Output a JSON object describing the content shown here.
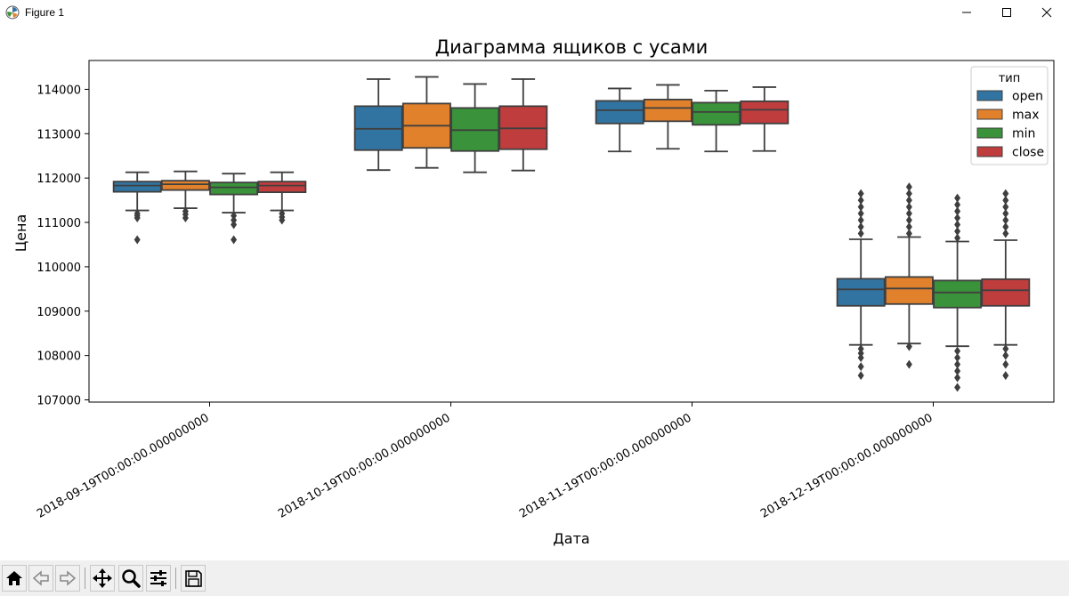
{
  "window": {
    "title": "Figure 1",
    "controls": [
      "minimize-icon",
      "maximize-icon",
      "close-icon"
    ]
  },
  "toolbar": {
    "buttons": [
      "home-icon",
      "back-icon",
      "forward-icon",
      "pan-icon",
      "zoom-icon",
      "configure-subplots-icon",
      "save-icon"
    ]
  },
  "chart_data": {
    "type": "box",
    "title": "Диаграмма ящиков с усами",
    "xlabel": "Дата",
    "ylabel": "Цена",
    "ylim": [
      106950,
      114650
    ],
    "yticks": [
      107000,
      108000,
      109000,
      110000,
      111000,
      112000,
      113000,
      114000
    ],
    "categories": [
      "2018-09-19T00:00:00.000000000",
      "2018-10-19T00:00:00.000000000",
      "2018-11-19T00:00:00.000000000",
      "2018-12-19T00:00:00.000000000"
    ],
    "legend": {
      "title": "тип",
      "placement": "top-right"
    },
    "grid": false,
    "series": [
      {
        "name": "open",
        "color": "#3274a1",
        "boxes": [
          {
            "whislo": 111270,
            "q1": 111690,
            "med": 111830,
            "q3": 111920,
            "whishi": 112130,
            "fliers": [
              111200,
              111150,
              111100,
              110610
            ]
          },
          {
            "whislo": 112180,
            "q1": 112630,
            "med": 113110,
            "q3": 113620,
            "whishi": 114230,
            "fliers": []
          },
          {
            "whislo": 112600,
            "q1": 113230,
            "med": 113530,
            "q3": 113740,
            "whishi": 114020,
            "fliers": []
          },
          {
            "whislo": 108240,
            "q1": 109120,
            "med": 109490,
            "q3": 109730,
            "whishi": 110620,
            "fliers": [
              111650,
              111500,
              111350,
              111200,
              111050,
              110900,
              110750,
              108150,
              108050,
              107950,
              107750,
              107550
            ]
          }
        ]
      },
      {
        "name": "max",
        "color": "#e1812c",
        "boxes": [
          {
            "whislo": 111320,
            "q1": 111730,
            "med": 111860,
            "q3": 111940,
            "whishi": 112150,
            "fliers": [
              111250,
              111180,
              111100
            ]
          },
          {
            "whislo": 112230,
            "q1": 112680,
            "med": 113180,
            "q3": 113680,
            "whishi": 114280,
            "fliers": []
          },
          {
            "whislo": 112660,
            "q1": 113280,
            "med": 113580,
            "q3": 113770,
            "whishi": 114100,
            "fliers": []
          },
          {
            "whislo": 108270,
            "q1": 109160,
            "med": 109510,
            "q3": 109770,
            "whishi": 110670,
            "fliers": [
              111800,
              111650,
              111500,
              111350,
              111200,
              111050,
              110900,
              110750,
              108200,
              107800
            ]
          }
        ]
      },
      {
        "name": "min",
        "color": "#3a923a",
        "boxes": [
          {
            "whislo": 111220,
            "q1": 111630,
            "med": 111790,
            "q3": 111900,
            "whishi": 112100,
            "fliers": [
              111150,
              111050,
              110950,
              110610
            ]
          },
          {
            "whislo": 112130,
            "q1": 112610,
            "med": 113080,
            "q3": 113580,
            "whishi": 114120,
            "fliers": []
          },
          {
            "whislo": 112600,
            "q1": 113200,
            "med": 113490,
            "q3": 113700,
            "whishi": 113970,
            "fliers": []
          },
          {
            "whislo": 108210,
            "q1": 109080,
            "med": 109420,
            "q3": 109690,
            "whishi": 110570,
            "fliers": [
              111550,
              111400,
              111250,
              111100,
              110950,
              110800,
              110650,
              108100,
              107950,
              107800,
              107650,
              107500,
              107280
            ]
          }
        ]
      },
      {
        "name": "close",
        "color": "#c03d3e",
        "boxes": [
          {
            "whislo": 111270,
            "q1": 111680,
            "med": 111830,
            "q3": 111920,
            "whishi": 112130,
            "fliers": [
              111200,
              111120,
              111050
            ]
          },
          {
            "whislo": 112170,
            "q1": 112650,
            "med": 113120,
            "q3": 113620,
            "whishi": 114230,
            "fliers": []
          },
          {
            "whislo": 112610,
            "q1": 113230,
            "med": 113540,
            "q3": 113730,
            "whishi": 114050,
            "fliers": []
          },
          {
            "whislo": 108240,
            "q1": 109120,
            "med": 109470,
            "q3": 109720,
            "whishi": 110600,
            "fliers": [
              111650,
              111500,
              111350,
              111200,
              111050,
              110900,
              110750,
              108150,
              108000,
              107800,
              107550
            ]
          }
        ]
      }
    ]
  }
}
